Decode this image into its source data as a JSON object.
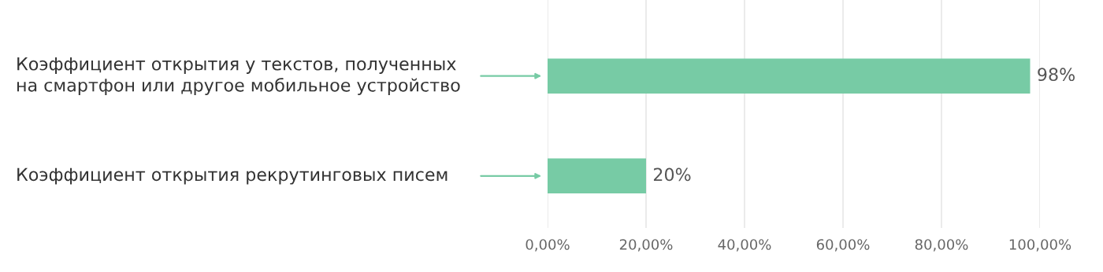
{
  "chart_data": {
    "type": "bar",
    "orientation": "horizontal",
    "categories": [
      "Коэффициент открытия у текстов, полученных\nна смартфон или другое мобильное устройство",
      "Коэффициент открытия рекрутинговых писем"
    ],
    "values": [
      98,
      20
    ],
    "color": "#77cba5",
    "value_labels": [
      "98%",
      "20%"
    ],
    "xlim": [
      0,
      100
    ],
    "xticks": [
      {
        "value": 0,
        "label": "0,00%"
      },
      {
        "value": 20,
        "label": "20,00%"
      },
      {
        "value": 40,
        "label": "40,00%"
      },
      {
        "value": 60,
        "label": "60,00%"
      },
      {
        "value": 80,
        "label": "80,00%"
      },
      {
        "value": 100,
        "label": "100,00%"
      }
    ],
    "grid": "x",
    "legend": false
  }
}
